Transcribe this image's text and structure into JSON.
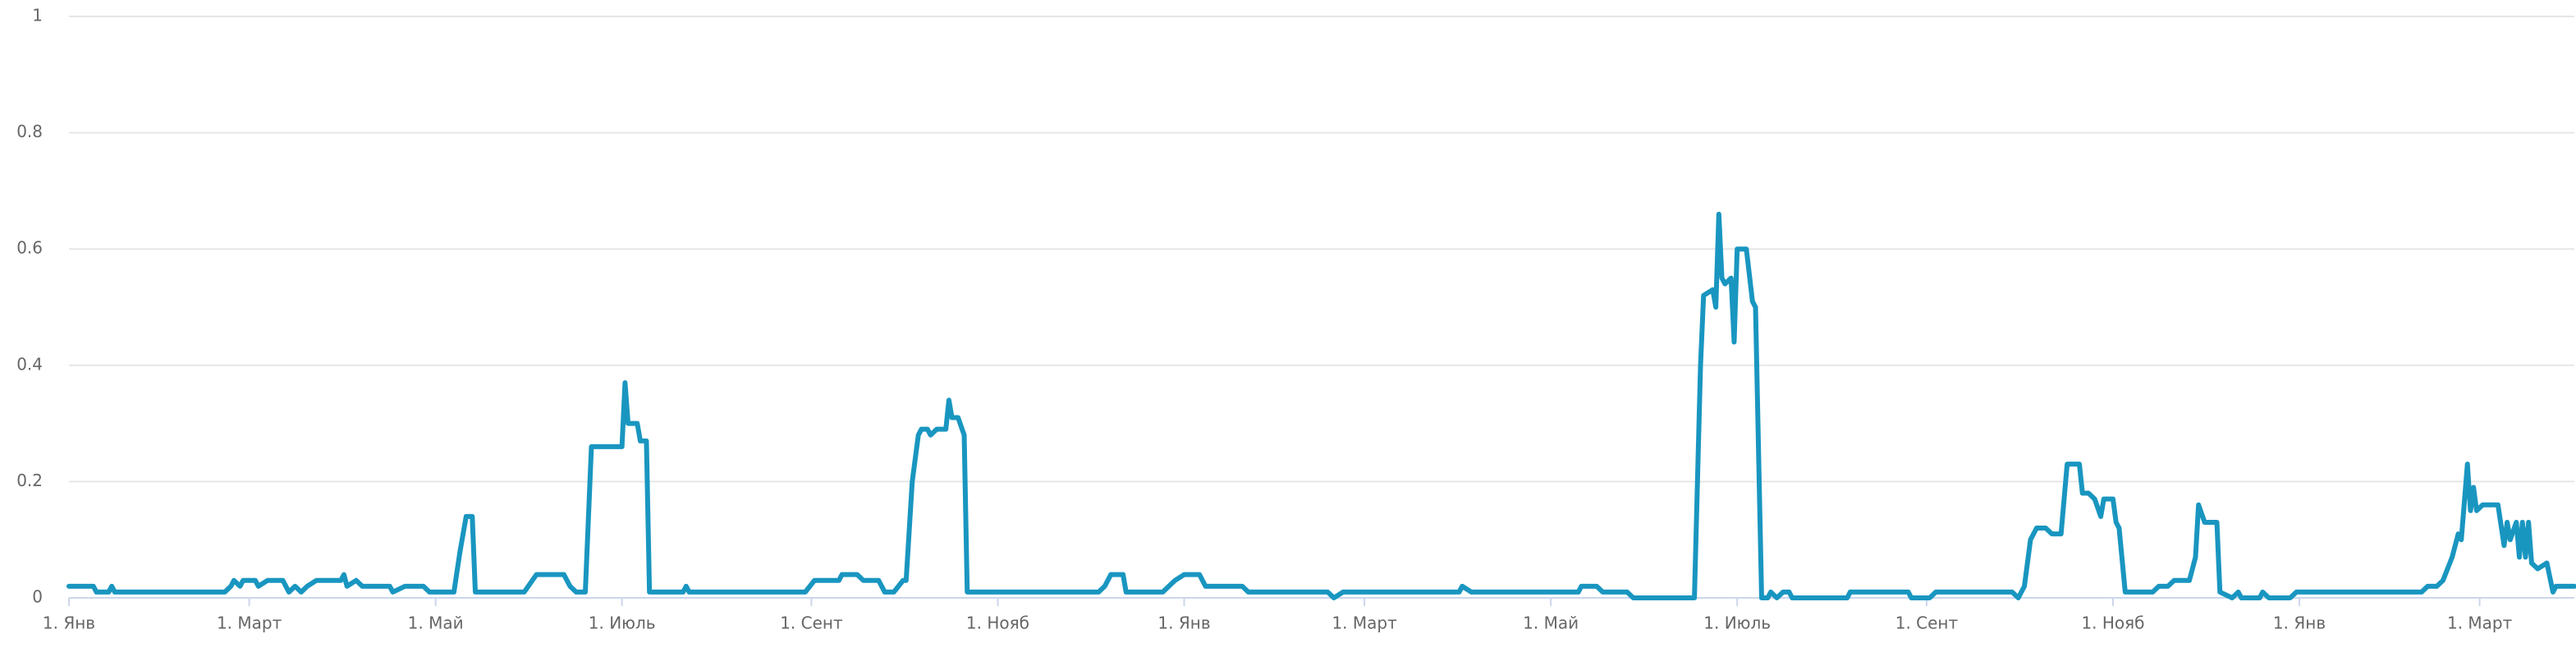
{
  "chart_data": {
    "type": "line",
    "x": [
      0,
      8,
      9,
      13,
      14,
      15,
      51,
      53,
      54,
      56,
      57,
      61,
      62,
      65,
      70,
      72,
      74,
      76,
      78,
      81,
      89,
      90,
      91,
      94,
      96,
      105,
      106,
      110,
      116,
      118,
      126,
      128,
      130,
      132,
      133,
      149,
      153,
      162,
      164,
      166,
      169,
      171,
      181,
      182,
      183,
      186,
      187,
      189,
      190,
      201,
      202,
      203,
      241,
      244,
      252,
      253,
      258,
      260,
      265,
      267,
      270,
      273,
      274,
      276,
      278,
      279,
      281,
      282,
      284,
      287,
      288,
      289,
      291,
      293,
      294,
      337,
      339,
      341,
      345,
      346,
      358,
      360,
      362,
      365,
      370,
      372,
      384,
      386,
      412,
      414,
      417,
      455,
      456,
      459,
      494,
      495,
      500,
      502,
      510,
      512,
      532,
      534,
      535,
      538,
      539,
      540,
      541,
      542,
      544,
      545,
      546,
      549,
      551,
      552,
      554,
      556,
      557,
      559,
      561,
      563,
      564,
      582,
      583,
      602,
      603,
      609,
      611,
      636,
      638,
      640,
      642,
      644,
      647,
      649,
      652,
      654,
      658,
      659,
      661,
      663,
      665,
      666,
      669,
      670,
      671,
      673,
      682,
      684,
      687,
      689,
      694,
      696,
      697,
      699,
      703,
      704,
      708,
      710,
      711,
      717,
      718,
      720,
      727,
      729,
      770,
      772,
      775,
      777,
      780,
      782,
      783,
      785,
      786,
      787,
      788,
      790,
      795,
      797,
      798,
      799,
      801,
      802,
      803,
      804,
      805,
      806,
      808,
      811,
      813,
      814,
      820
    ],
    "series": [
      {
        "color": "#1996c0",
        "values": [
          0.02,
          0.02,
          0.01,
          0.01,
          0.02,
          0.01,
          0.01,
          0.02,
          0.03,
          0.02,
          0.03,
          0.03,
          0.02,
          0.03,
          0.03,
          0.01,
          0.02,
          0.01,
          0.02,
          0.03,
          0.03,
          0.04,
          0.02,
          0.03,
          0.02,
          0.02,
          0.01,
          0.02,
          0.02,
          0.01,
          0.01,
          0.08,
          0.14,
          0.14,
          0.01,
          0.01,
          0.04,
          0.04,
          0.02,
          0.01,
          0.01,
          0.26,
          0.26,
          0.37,
          0.3,
          0.3,
          0.27,
          0.27,
          0.01,
          0.01,
          0.02,
          0.01,
          0.01,
          0.03,
          0.03,
          0.04,
          0.04,
          0.03,
          0.03,
          0.01,
          0.01,
          0.03,
          0.03,
          0.2,
          0.28,
          0.29,
          0.29,
          0.28,
          0.29,
          0.29,
          0.34,
          0.31,
          0.31,
          0.28,
          0.01,
          0.01,
          0.02,
          0.04,
          0.04,
          0.01,
          0.01,
          0.02,
          0.03,
          0.04,
          0.04,
          0.02,
          0.02,
          0.01,
          0.01,
          0.0,
          0.01,
          0.01,
          0.02,
          0.01,
          0.01,
          0.02,
          0.02,
          0.01,
          0.01,
          0.0,
          0.0,
          0.4,
          0.52,
          0.53,
          0.5,
          0.66,
          0.55,
          0.54,
          0.55,
          0.44,
          0.6,
          0.6,
          0.51,
          0.5,
          0.0,
          0.0,
          0.01,
          0.0,
          0.01,
          0.01,
          0.0,
          0.0,
          0.01,
          0.01,
          0.0,
          0.0,
          0.01,
          0.01,
          0.0,
          0.02,
          0.1,
          0.12,
          0.12,
          0.11,
          0.11,
          0.23,
          0.23,
          0.18,
          0.18,
          0.17,
          0.14,
          0.17,
          0.17,
          0.13,
          0.12,
          0.01,
          0.01,
          0.02,
          0.02,
          0.03,
          0.03,
          0.07,
          0.16,
          0.13,
          0.13,
          0.01,
          0.0,
          0.01,
          0.0,
          0.0,
          0.01,
          0.0,
          0.0,
          0.01,
          0.01,
          0.02,
          0.02,
          0.03,
          0.07,
          0.11,
          0.1,
          0.23,
          0.15,
          0.19,
          0.15,
          0.16,
          0.16,
          0.09,
          0.13,
          0.1,
          0.13,
          0.07,
          0.13,
          0.07,
          0.13,
          0.06,
          0.05,
          0.06,
          0.01,
          0.02,
          0.02
        ]
      }
    ],
    "xlim": [
      0,
      820
    ],
    "xticks": [
      {
        "value": 0,
        "label": "1. Янв"
      },
      {
        "value": 59,
        "label": "1. Март"
      },
      {
        "value": 120,
        "label": "1. Май"
      },
      {
        "value": 181,
        "label": "1. Июль"
      },
      {
        "value": 243,
        "label": "1. Сент"
      },
      {
        "value": 304,
        "label": "1. Нояб"
      },
      {
        "value": 365,
        "label": "1. Янв"
      },
      {
        "value": 424,
        "label": "1. Март"
      },
      {
        "value": 485,
        "label": "1. Май"
      },
      {
        "value": 546,
        "label": "1. Июль"
      },
      {
        "value": 608,
        "label": "1. Сент"
      },
      {
        "value": 669,
        "label": "1. Нояб"
      },
      {
        "value": 730,
        "label": "1. Янв"
      },
      {
        "value": 789,
        "label": "1. Март"
      }
    ],
    "ylim": [
      0,
      1
    ],
    "yticks": [
      0,
      0.2,
      0.4,
      0.6,
      0.8,
      1
    ],
    "grid": true
  }
}
